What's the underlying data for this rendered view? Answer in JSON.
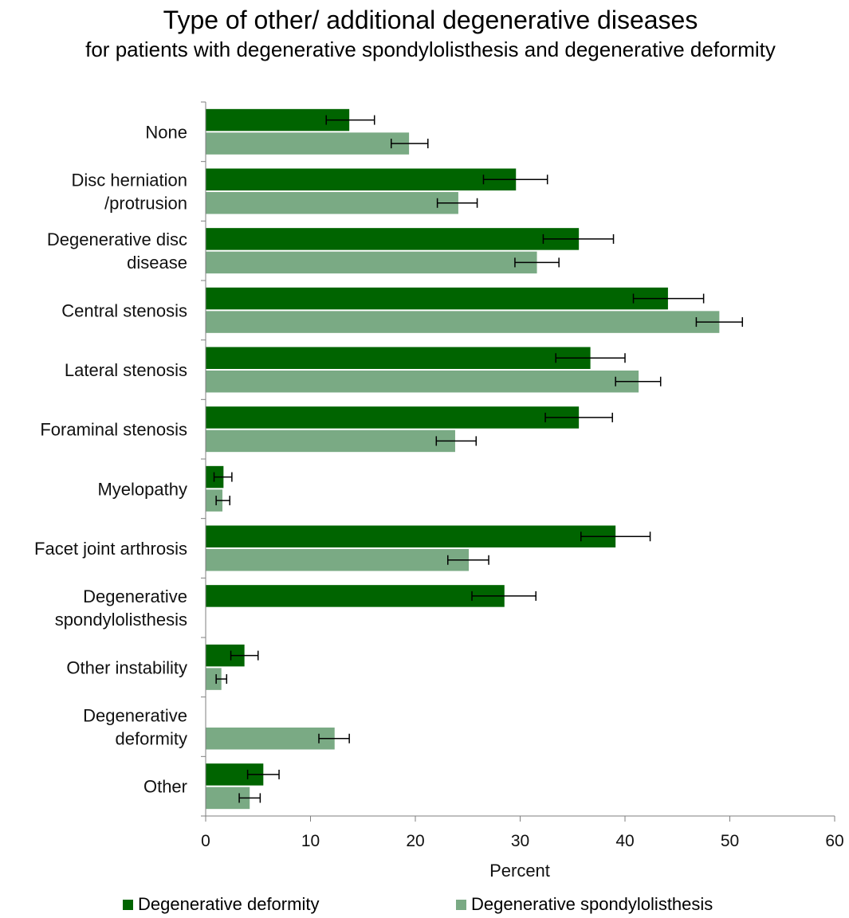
{
  "chart_data": {
    "type": "bar",
    "orientation": "horizontal",
    "title": "Type of other/ additional degenerative diseases",
    "subtitle": "for patients with degenerative spondylolisthesis  and degenerative deformity",
    "xlabel": "Percent",
    "ylabel": "",
    "xlim": [
      0,
      60
    ],
    "xticks": [
      0,
      10,
      20,
      30,
      40,
      50,
      60
    ],
    "grid": false,
    "legend_position": "bottom",
    "categories": [
      [
        "None"
      ],
      [
        "Disc herniation",
        "/protrusion"
      ],
      [
        "Degenerative disc",
        "disease"
      ],
      [
        "Central stenosis"
      ],
      [
        "Lateral stenosis"
      ],
      [
        "Foraminal stenosis"
      ],
      [
        "Myelopathy"
      ],
      [
        "Facet joint arthrosis"
      ],
      [
        "Degenerative",
        "spondylolisthesis"
      ],
      [
        "Other instability"
      ],
      [
        "Degenerative",
        "deformity"
      ],
      [
        "Other"
      ]
    ],
    "series": [
      {
        "name": "Degenerative deformity",
        "color": "#006400",
        "values": [
          13.7,
          29.6,
          35.6,
          44.1,
          36.7,
          35.6,
          1.7,
          39.1,
          28.5,
          3.7,
          null,
          5.5
        ],
        "err_low": [
          11.5,
          26.5,
          32.2,
          40.8,
          33.4,
          32.4,
          0.8,
          35.8,
          25.4,
          2.4,
          null,
          4.0
        ],
        "err_high": [
          16.1,
          32.6,
          38.9,
          47.5,
          40.0,
          38.8,
          2.5,
          42.4,
          31.5,
          5.0,
          null,
          7.0
        ]
      },
      {
        "name": "Degenerative spondylolisthesis",
        "color": "#7aaa84",
        "values": [
          19.4,
          24.1,
          31.6,
          49.0,
          41.3,
          23.8,
          1.6,
          25.1,
          null,
          1.5,
          12.3,
          4.2
        ],
        "err_low": [
          17.7,
          22.1,
          29.5,
          46.8,
          39.1,
          22.0,
          1.0,
          23.1,
          null,
          1.0,
          10.8,
          3.2
        ],
        "err_high": [
          21.2,
          25.9,
          33.7,
          51.2,
          43.4,
          25.8,
          2.3,
          27.0,
          null,
          2.0,
          13.7,
          5.2
        ]
      }
    ]
  }
}
